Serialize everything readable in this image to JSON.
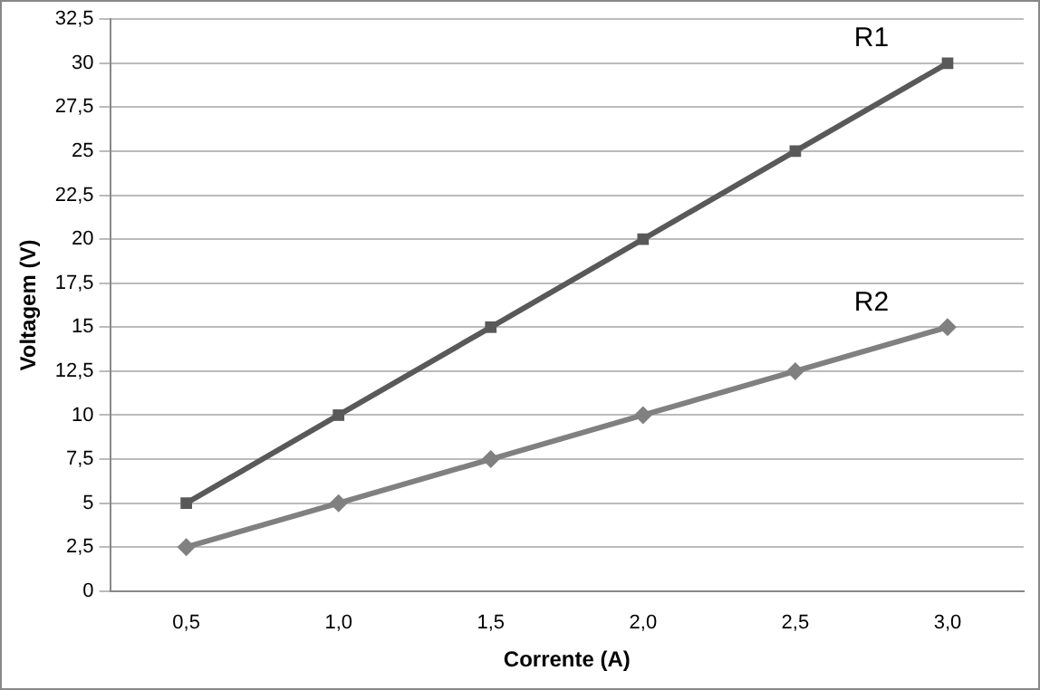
{
  "chart_data": {
    "type": "line",
    "xlabel": "Corrente (A)",
    "ylabel": "Voltagem (V)",
    "categories": [
      "0,5",
      "1,0",
      "1,5",
      "2,0",
      "2,5",
      "3,0"
    ],
    "series": [
      {
        "name": "R1",
        "color": "#595959",
        "marker": "square",
        "values": [
          5,
          10,
          15,
          20,
          25,
          30
        ]
      },
      {
        "name": "R2",
        "color": "#808080",
        "marker": "diamond",
        "values": [
          2.5,
          5,
          7.5,
          10,
          12.5,
          15
        ]
      }
    ],
    "ylim": [
      0,
      32.5
    ],
    "yticks": [
      0,
      {
        "value": 2.5,
        "label": "2,5"
      },
      5,
      {
        "value": 7.5,
        "label": "7,5"
      },
      10,
      {
        "value": 12.5,
        "label": "12,5"
      },
      15,
      {
        "value": 17.5,
        "label": "17,5"
      },
      20,
      {
        "value": 22.5,
        "label": "22,5"
      },
      25,
      {
        "value": 27.5,
        "label": "27,5"
      },
      30,
      {
        "value": 32.5,
        "label": "32,5"
      }
    ],
    "grid": "y",
    "legend": false
  }
}
